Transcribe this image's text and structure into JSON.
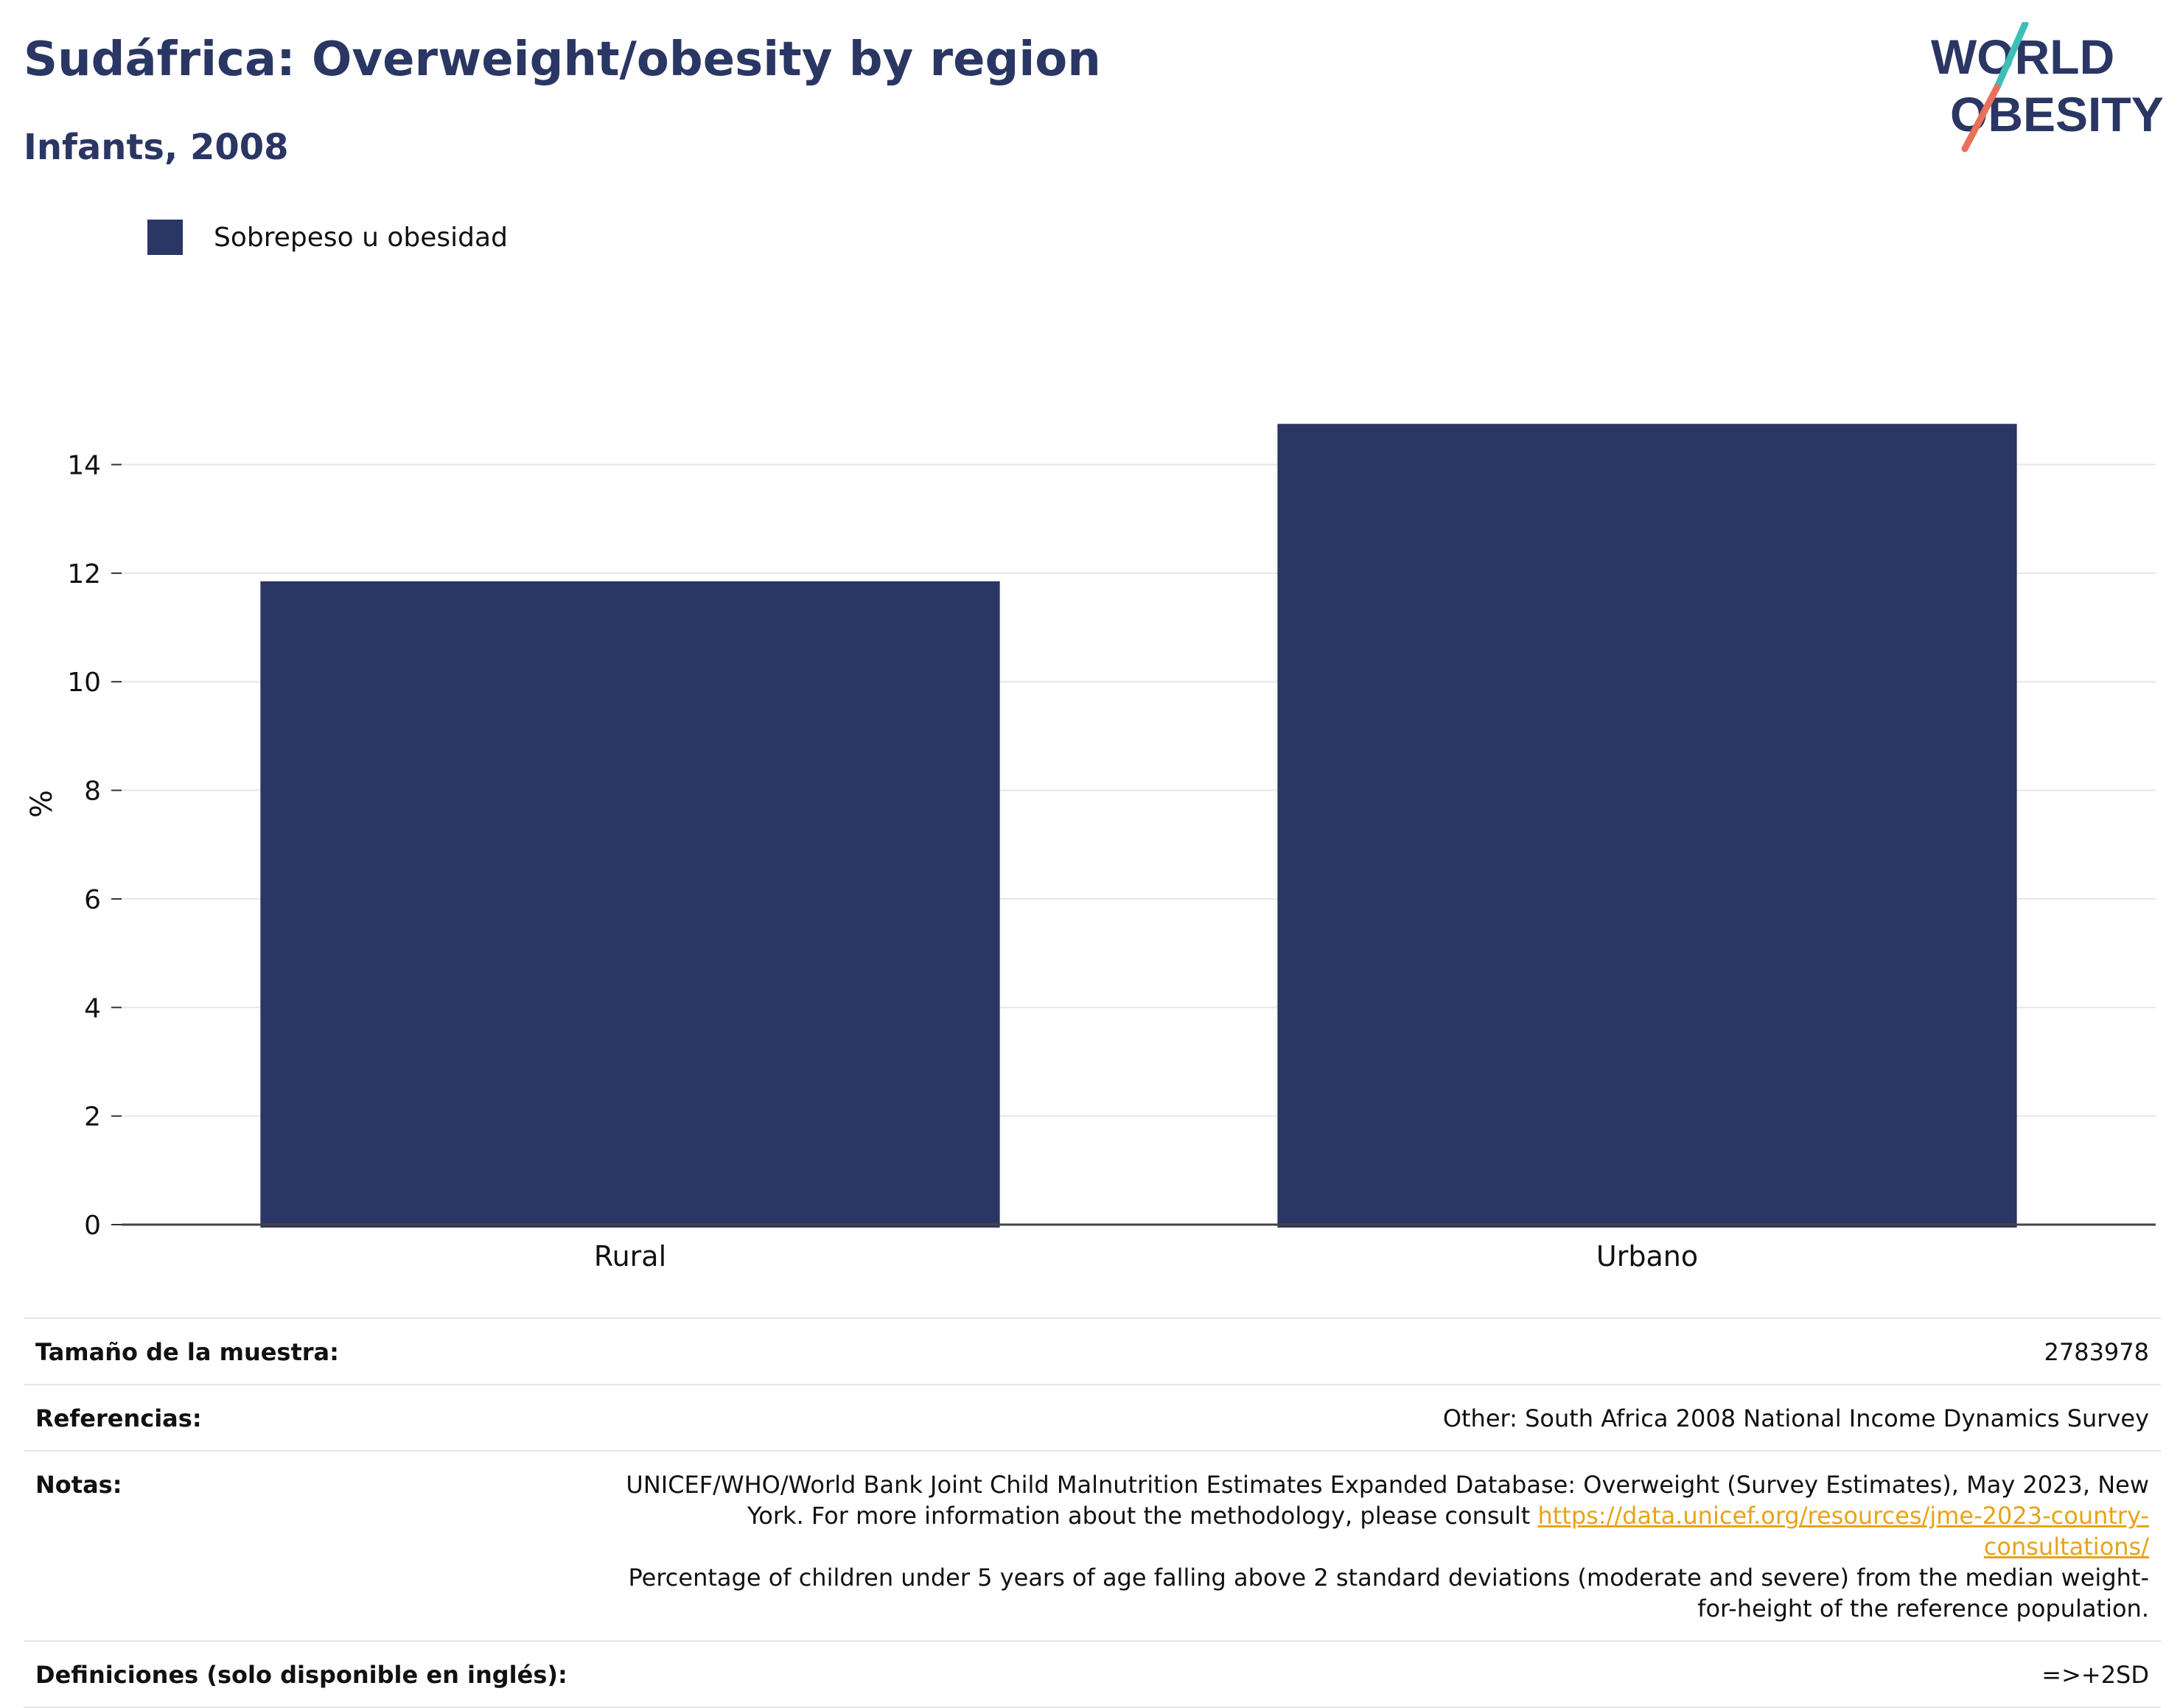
{
  "header": {
    "title": "Sudáfrica: Overweight/obesity by region",
    "subtitle": "Infants, 2008"
  },
  "logo": {
    "line1": "WORLD",
    "line2": "OBESITY"
  },
  "chart_data": {
    "type": "bar",
    "categories": [
      "Rural",
      "Urbano"
    ],
    "series": [
      {
        "name": "Sobrepeso u obesidad",
        "values": [
          11.85,
          14.75
        ],
        "color": "#2a3663"
      }
    ],
    "ylabel": "%",
    "ylim": [
      0,
      15.5
    ],
    "yticks": [
      0,
      2,
      4,
      6,
      8,
      10,
      12,
      14
    ],
    "grid": true,
    "legend_position": "top-left"
  },
  "info": {
    "sample_label": "Tamaño de la muestra:",
    "sample_value": "2783978",
    "refs_label": "Referencias:",
    "refs_value": "Other: South Africa 2008 National Income Dynamics Survey",
    "notes_label": "Notas:",
    "notes_text1": "UNICEF/WHO/World Bank Joint Child Malnutrition Estimates Expanded Database: Overweight (Survey Estimates), May 2023, New York. For more information about the methodology, please consult ",
    "notes_link": "https://data.unicef.org/resources/jme-2023-country-consultations/",
    "notes_text2": "Percentage of children under 5 years of age falling above 2 standard deviations (moderate and severe) from the median weight-for-height of the reference population.",
    "defs_label": "Definiciones (solo disponible en inglés):",
    "defs_value": "=>+2SD"
  }
}
